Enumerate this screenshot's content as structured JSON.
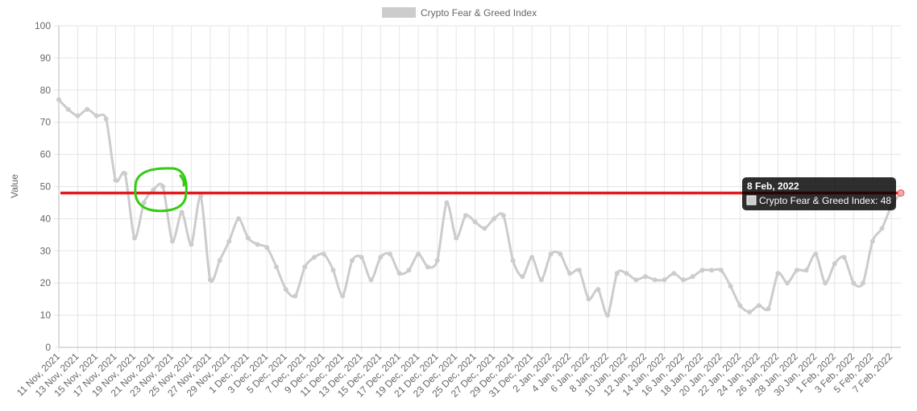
{
  "chart_data": {
    "type": "line",
    "y_label": "Value",
    "categories": [
      "11 Nov, 2021",
      null,
      "13 Nov, 2021",
      null,
      "15 Nov, 2021",
      null,
      "17 Nov, 2021",
      null,
      "19 Nov, 2021",
      null,
      "21 Nov, 2021",
      null,
      "23 Nov, 2021",
      null,
      "25 Nov, 2021",
      null,
      "27 Nov, 2021",
      null,
      "29 Nov, 2021",
      null,
      "1 Dec, 2021",
      null,
      "3 Dec, 2021",
      null,
      "5 Dec, 2021",
      null,
      "7 Dec, 2021",
      null,
      "9 Dec, 2021",
      null,
      "11 Dec, 2021",
      null,
      "13 Dec, 2021",
      null,
      "15 Dec, 2021",
      null,
      "17 Dec, 2021",
      null,
      "19 Dec, 2021",
      null,
      "21 Dec, 2021",
      null,
      "23 Dec, 2021",
      null,
      "25 Dec, 2021",
      null,
      "27 Dec, 2021",
      null,
      "29 Dec, 2021",
      null,
      "31 Dec, 2021",
      null,
      "2 Jan, 2022",
      null,
      "4 Jan, 2022",
      null,
      "6 Jan, 2022",
      null,
      "8 Jan, 2022",
      null,
      "10 Jan, 2022",
      null,
      "12 Jan, 2022",
      null,
      "14 Jan, 2022",
      null,
      "16 Jan, 2022",
      null,
      "18 Jan, 2022",
      null,
      "20 Jan, 2022",
      null,
      "22 Jan, 2022",
      null,
      "24 Jan, 2022",
      null,
      "26 Jan, 2022",
      null,
      "28 Jan, 2022",
      null,
      "30 Jan, 2022",
      null,
      "1 Feb, 2022",
      null,
      "3 Feb, 2022",
      null,
      "5 Feb, 2022",
      null,
      "7 Feb, 2022",
      null
    ],
    "series": [
      {
        "name": "Crypto Fear & Greed Index",
        "color": "#cccccc",
        "values": [
          77,
          74,
          72,
          74,
          72,
          71,
          52,
          54,
          34,
          45,
          49,
          50,
          33,
          42,
          32,
          47,
          21,
          27,
          33,
          40,
          34,
          32,
          31,
          25,
          18,
          16,
          25,
          28,
          29,
          24,
          16,
          27,
          28,
          21,
          28,
          29,
          23,
          24,
          29,
          25,
          27,
          45,
          34,
          41,
          39,
          37,
          40,
          41,
          27,
          22,
          28,
          21,
          29,
          29,
          23,
          24,
          15,
          18,
          10,
          23,
          23,
          21,
          22,
          21,
          21,
          23,
          21,
          22,
          24,
          24,
          24,
          19,
          13,
          11,
          13,
          12,
          23,
          20,
          24,
          24,
          29,
          20,
          26,
          28,
          20,
          20,
          33,
          37,
          44,
          48
        ]
      }
    ],
    "ylim": [
      0,
      100
    ],
    "yticks": [
      0,
      10,
      20,
      30,
      40,
      50,
      60,
      70,
      80,
      90,
      100
    ],
    "grid": true,
    "legend": "top",
    "reference_line": {
      "value": 48,
      "color": "#e31a1c"
    },
    "tooltip": {
      "title": "8 Feb, 2022",
      "label": "Crypto Fear & Greed Index: 48"
    }
  }
}
